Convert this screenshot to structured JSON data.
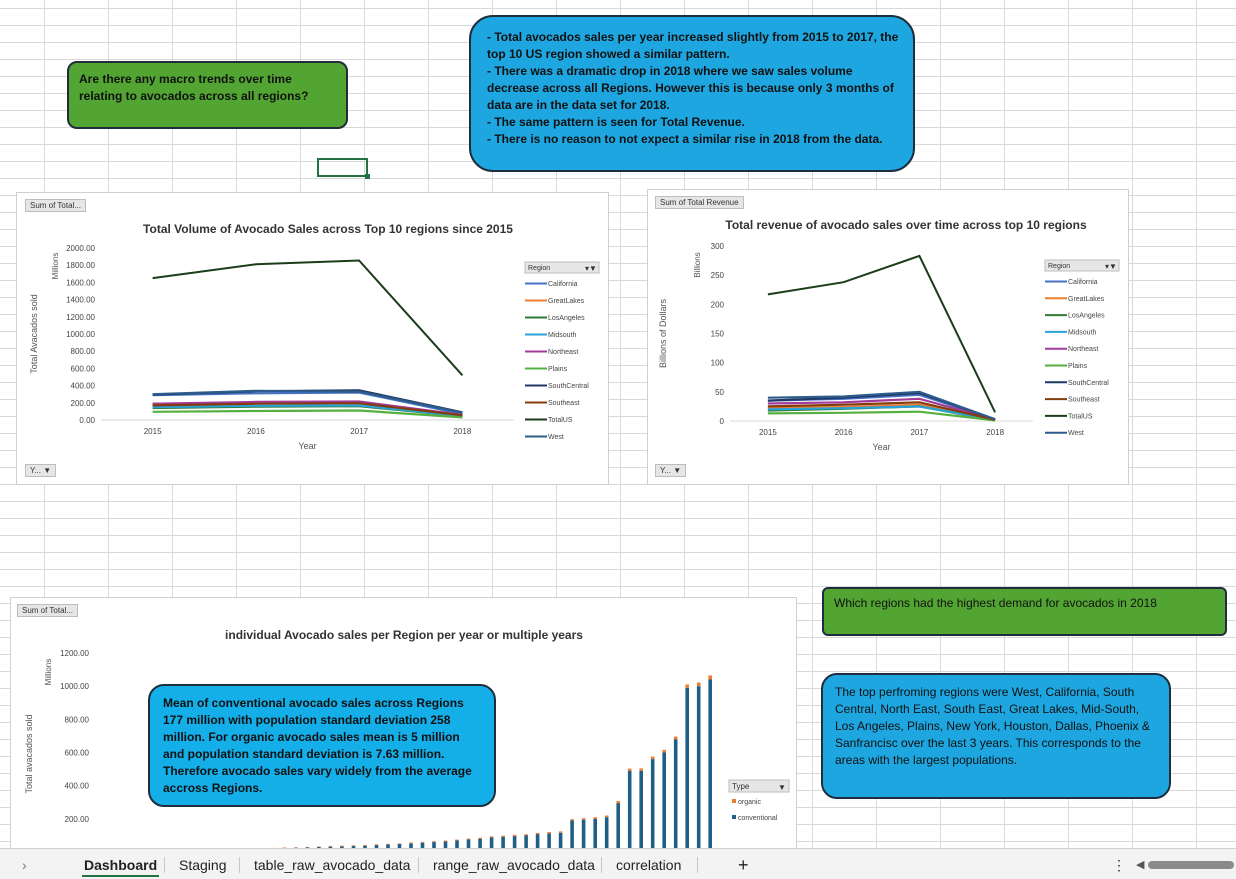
{
  "notes": {
    "q1": "Are there any macro trends over time relating to avocados across all regions?",
    "summary": [
      "- Total avocados sales per year increased slightly from 2015 to 2017, the top 10 US region showed a similar pattern.",
      "- There was a dramatic drop in  2018 where we saw sales volume decrease across all Regions. However  this is because only 3 months of data are in the data set for 2018.",
      "- The same pattern is seen for Total Revenue.",
      "- There is no reason to not expect a similar rise in 2018 from the data."
    ],
    "q2": "Which regions had the highest demand for avocados in 2018",
    "top_regions": "The top  perfroming regions were West, California, South Central, North East, South East, Great Lakes, Mid-South, Los Angeles, Plains, New York, Houston, Dallas, Phoenix & Sanfrancisc over the last 3 years.  This corresponds to the areas with the largest populations.",
    "mean_text": "Mean of conventional avocado sales across Regions 177 million with population standard deviation 258 million. For organic avocado sales mean  is  5 million and population standard deviation is  7.63 million. Therefore avocado sales vary widely from the average accross Regions."
  },
  "colors": {
    "California": "#4472c4",
    "GreatLakes": "#ed7d31",
    "LosAngeles": "#2e7d32",
    "Midsouth": "#29a3d9",
    "Northeast": "#a23b9c",
    "Plains": "#55b03f",
    "SouthCentral": "#1f3864",
    "Southeast": "#843c0c",
    "TotalUS": "#1b3d1b",
    "West": "#2e5c8a",
    "organic": "#ed7d31",
    "conventional": "#1f5f85"
  },
  "chart_data": [
    {
      "type": "line",
      "title": "Total Volume of Avocado Sales across Top 10  regions  since 2015",
      "field_button": "Sum of Total...",
      "axis_button": "Y...",
      "xlabel": "Year",
      "ylabel": "Total Avacados sold",
      "units": "Millions",
      "legend_title": "Region",
      "categories": [
        "2015",
        "2016",
        "2017",
        "2018"
      ],
      "yticks": [
        "0.00",
        "200.00",
        "400.00",
        "600.00",
        "800.00",
        "1000.00",
        "1200.00",
        "1400.00",
        "1600.00",
        "1800.00",
        "2000.00"
      ],
      "ylim": [
        0,
        2000
      ],
      "series": [
        {
          "name": "California",
          "values": [
            290,
            310,
            320,
            70
          ]
        },
        {
          "name": "GreatLakes",
          "values": [
            190,
            200,
            200,
            55
          ]
        },
        {
          "name": "LosAngeles",
          "values": [
            140,
            155,
            160,
            45
          ]
        },
        {
          "name": "Midsouth",
          "values": [
            150,
            165,
            170,
            45
          ]
        },
        {
          "name": "Northeast",
          "values": [
            190,
            210,
            215,
            60
          ]
        },
        {
          "name": "Plains",
          "values": [
            95,
            105,
            110,
            30
          ]
        },
        {
          "name": "SouthCentral",
          "values": [
            295,
            335,
            345,
            90
          ]
        },
        {
          "name": "Southeast",
          "values": [
            170,
            190,
            195,
            55
          ]
        },
        {
          "name": "TotalUS",
          "values": [
            1650,
            1810,
            1855,
            520
          ]
        },
        {
          "name": "West",
          "values": [
            300,
            340,
            330,
            85
          ]
        }
      ]
    },
    {
      "type": "line",
      "title": "Total revenue of avocado sales over time across top 10 regions",
      "field_button": "Sum of Total Revenue",
      "axis_button": "Y...",
      "xlabel": "Year",
      "ylabel": "Billions of Dollars",
      "units": "Billions",
      "legend_title": "Region",
      "categories": [
        "2015",
        "2016",
        "2017",
        "2018"
      ],
      "yticks": [
        "0",
        "50",
        "100",
        "150",
        "200",
        "250",
        "300"
      ],
      "ylim": [
        0,
        300
      ],
      "series": [
        {
          "name": "California",
          "values": [
            35,
            38,
            45,
            3
          ]
        },
        {
          "name": "GreatLakes",
          "values": [
            22,
            24,
            28,
            2
          ]
        },
        {
          "name": "LosAngeles",
          "values": [
            18,
            21,
            25,
            1
          ]
        },
        {
          "name": "Midsouth",
          "values": [
            20,
            22,
            25,
            2
          ]
        },
        {
          "name": "Northeast",
          "values": [
            30,
            32,
            38,
            3
          ]
        },
        {
          "name": "Plains",
          "values": [
            13,
            14,
            16,
            1
          ]
        },
        {
          "name": "SouthCentral",
          "values": [
            35,
            40,
            48,
            3
          ]
        },
        {
          "name": "Southeast",
          "values": [
            25,
            28,
            32,
            2
          ]
        },
        {
          "name": "TotalUS",
          "values": [
            217,
            238,
            283,
            15
          ]
        },
        {
          "name": "West",
          "values": [
            40,
            42,
            50,
            3
          ]
        }
      ]
    },
    {
      "type": "bar",
      "title": "individual Avocado sales per Region per year or multiple years",
      "field_button": "Sum of Total...",
      "ylabel": "Total avacados sold",
      "units": "Millions",
      "legend_title": "Type",
      "yticks": [
        "200.00",
        "400.00",
        "600.00",
        "800.00",
        "1000.00",
        "1200.00"
      ],
      "ylim": [
        0,
        1200
      ],
      "series": [
        {
          "name": "organic",
          "values": [
            2,
            2,
            2,
            2,
            2,
            2,
            2,
            2,
            2,
            2,
            2,
            2,
            3,
            3,
            3,
            3,
            3,
            3,
            3,
            4,
            4,
            4,
            4,
            4,
            4,
            4,
            5,
            5,
            5,
            5,
            5,
            5,
            6,
            6,
            6,
            7,
            7,
            7,
            8,
            8,
            8,
            9,
            10,
            10,
            12,
            13,
            14,
            15,
            16,
            16,
            20,
            22,
            25
          ]
        },
        {
          "name": "conventional",
          "values": [
            3,
            4,
            5,
            6,
            8,
            9,
            10,
            11,
            12,
            13,
            14,
            16,
            18,
            20,
            22,
            24,
            26,
            28,
            30,
            32,
            34,
            36,
            38,
            42,
            45,
            48,
            52,
            56,
            60,
            64,
            70,
            76,
            80,
            88,
            92,
            96,
            100,
            108,
            112,
            116,
            190,
            195,
            200,
            210,
            295,
            490,
            490,
            560,
            600,
            680,
            990,
            1000,
            1040
          ]
        }
      ]
    }
  ],
  "tabs": [
    "Dashboard",
    "Staging",
    "table_raw_avocado_data",
    "range_raw_avocado_data",
    "correlation"
  ],
  "tabbar": {
    "prev": "›",
    "add": "+",
    "more": "⋮",
    "scroll_left": "◀"
  }
}
